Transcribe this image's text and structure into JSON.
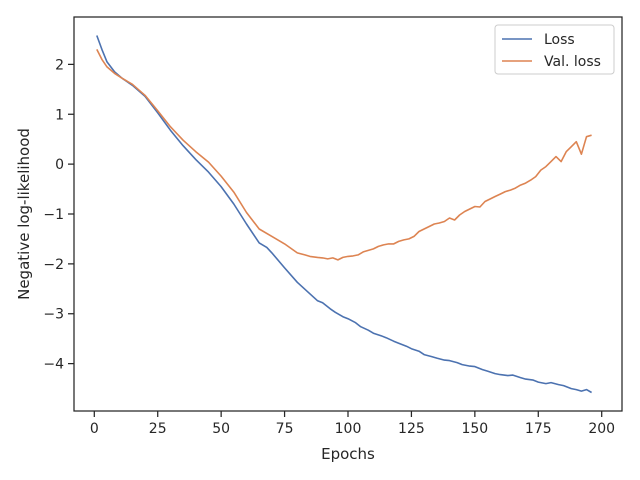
{
  "chart_data": {
    "type": "line",
    "title": "",
    "xlabel": "Epochs",
    "ylabel": "Negative log-likelihood",
    "xlim": [
      -8,
      208
    ],
    "ylim": [
      -4.95,
      2.95
    ],
    "xticks": [
      0,
      25,
      50,
      75,
      100,
      125,
      150,
      175,
      200
    ],
    "yticks": [
      -4,
      -3,
      -2,
      -1,
      0,
      1,
      2
    ],
    "grid": false,
    "legend_position": "top-right",
    "series": [
      {
        "name": "Loss",
        "color": "#4c72b0",
        "x": [
          1,
          3,
          5,
          8,
          11,
          15,
          20,
          25,
          30,
          35,
          40,
          45,
          50,
          55,
          60,
          65,
          68,
          70,
          75,
          80,
          85,
          88,
          90,
          93,
          95,
          98,
          100,
          103,
          105,
          108,
          110,
          113,
          115,
          118,
          120,
          123,
          125,
          128,
          130,
          133,
          135,
          138,
          140,
          143,
          145,
          148,
          150,
          153,
          155,
          158,
          160,
          163,
          165,
          168,
          170,
          173,
          175,
          178,
          180,
          183,
          185,
          188,
          190,
          192,
          194,
          196
        ],
        "y": [
          2.58,
          2.3,
          2.05,
          1.85,
          1.72,
          1.58,
          1.36,
          1.03,
          0.68,
          0.37,
          0.09,
          -0.16,
          -0.45,
          -0.8,
          -1.2,
          -1.58,
          -1.67,
          -1.78,
          -2.08,
          -2.37,
          -2.6,
          -2.74,
          -2.78,
          -2.9,
          -2.97,
          -3.06,
          -3.1,
          -3.18,
          -3.26,
          -3.33,
          -3.39,
          -3.44,
          -3.48,
          -3.55,
          -3.59,
          -3.65,
          -3.7,
          -3.75,
          -3.82,
          -3.86,
          -3.89,
          -3.93,
          -3.94,
          -3.98,
          -4.02,
          -4.05,
          -4.06,
          -4.12,
          -4.15,
          -4.2,
          -4.22,
          -4.24,
          -4.23,
          -4.28,
          -4.31,
          -4.33,
          -4.37,
          -4.4,
          -4.38,
          -4.42,
          -4.44,
          -4.5,
          -4.52,
          -4.55,
          -4.52,
          -4.58
        ]
      },
      {
        "name": "Val. loss",
        "color": "#dd8452",
        "x": [
          1,
          3,
          5,
          8,
          11,
          15,
          20,
          25,
          30,
          35,
          40,
          45,
          50,
          55,
          60,
          65,
          70,
          75,
          80,
          83,
          85,
          88,
          90,
          92,
          94,
          96,
          98,
          100,
          102,
          104,
          106,
          108,
          110,
          112,
          114,
          116,
          118,
          120,
          122,
          124,
          126,
          128,
          130,
          132,
          134,
          136,
          138,
          140,
          142,
          144,
          146,
          148,
          150,
          152,
          154,
          156,
          158,
          160,
          162,
          164,
          166,
          168,
          170,
          172,
          174,
          176,
          178,
          180,
          182,
          184,
          186,
          188,
          190,
          192,
          194,
          196
        ],
        "y": [
          2.3,
          2.1,
          1.95,
          1.82,
          1.72,
          1.6,
          1.38,
          1.07,
          0.75,
          0.48,
          0.25,
          0.04,
          -0.24,
          -0.56,
          -0.97,
          -1.3,
          -1.45,
          -1.6,
          -1.78,
          -1.82,
          -1.85,
          -1.87,
          -1.88,
          -1.9,
          -1.88,
          -1.92,
          -1.87,
          -1.85,
          -1.84,
          -1.82,
          -1.76,
          -1.73,
          -1.7,
          -1.65,
          -1.62,
          -1.6,
          -1.6,
          -1.55,
          -1.52,
          -1.5,
          -1.45,
          -1.35,
          -1.3,
          -1.25,
          -1.2,
          -1.18,
          -1.15,
          -1.08,
          -1.12,
          -1.02,
          -0.95,
          -0.9,
          -0.85,
          -0.86,
          -0.75,
          -0.7,
          -0.65,
          -0.6,
          -0.55,
          -0.52,
          -0.48,
          -0.42,
          -0.38,
          -0.32,
          -0.25,
          -0.12,
          -0.05,
          0.05,
          0.15,
          0.05,
          0.25,
          0.35,
          0.45,
          0.2,
          0.55,
          0.58
        ]
      }
    ]
  }
}
